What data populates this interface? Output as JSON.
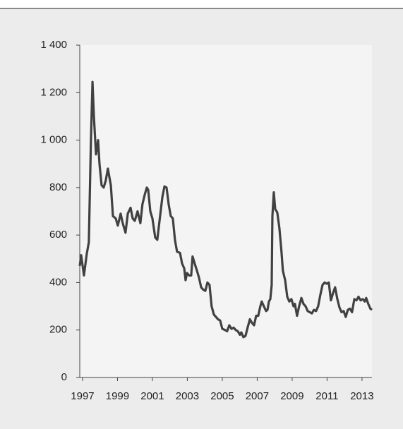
{
  "chart_data": {
    "type": "line",
    "x": [
      1996.84,
      1996.92,
      1997.08,
      1997.24,
      1997.36,
      1997.48,
      1997.57,
      1997.65,
      1997.77,
      1997.89,
      1997.97,
      1998.09,
      1998.21,
      1998.33,
      1998.45,
      1998.62,
      1998.74,
      1998.9,
      1999.02,
      1999.18,
      1999.3,
      1999.46,
      1999.59,
      1999.75,
      1999.87,
      1999.99,
      2000.15,
      2000.31,
      2000.43,
      2000.56,
      2000.68,
      2000.76,
      2000.88,
      2001.0,
      2001.16,
      2001.28,
      2001.44,
      2001.57,
      2001.69,
      2001.81,
      2001.93,
      2002.05,
      2002.17,
      2002.29,
      2002.41,
      2002.58,
      2002.7,
      2002.82,
      2002.9,
      2002.98,
      2003.1,
      2003.22,
      2003.3,
      2003.42,
      2003.55,
      2003.67,
      2003.79,
      2003.91,
      2004.03,
      2004.15,
      2004.27,
      2004.39,
      2004.52,
      2004.64,
      2004.76,
      2004.88,
      2005.0,
      2005.16,
      2005.28,
      2005.4,
      2005.53,
      2005.65,
      2005.77,
      2005.89,
      2006.01,
      2006.09,
      2006.21,
      2006.33,
      2006.45,
      2006.58,
      2006.7,
      2006.82,
      2006.94,
      2007.06,
      2007.18,
      2007.26,
      2007.38,
      2007.51,
      2007.59,
      2007.67,
      2007.75,
      2007.83,
      2007.87,
      2007.95,
      2008.03,
      2008.15,
      2008.27,
      2008.39,
      2008.47,
      2008.6,
      2008.72,
      2008.84,
      2008.96,
      2009.08,
      2009.16,
      2009.28,
      2009.4,
      2009.53,
      2009.65,
      2009.77,
      2009.89,
      2010.01,
      2010.13,
      2010.25,
      2010.37,
      2010.49,
      2010.62,
      2010.74,
      2010.86,
      2010.98,
      2011.1,
      2011.22,
      2011.34,
      2011.46,
      2011.59,
      2011.71,
      2011.83,
      2011.95,
      2012.07,
      2012.19,
      2012.31,
      2012.43,
      2012.56,
      2012.68,
      2012.8,
      2012.92,
      2013.04,
      2013.16,
      2013.24,
      2013.36,
      2013.48,
      2013.57
    ],
    "series": [
      {
        "color": "#414141",
        "values": [
          470,
          515,
          430,
          520,
          570,
          1000,
          1245,
          1100,
          940,
          1000,
          900,
          810,
          800,
          830,
          880,
          810,
          680,
          670,
          640,
          690,
          650,
          610,
          690,
          715,
          670,
          660,
          700,
          650,
          730,
          770,
          800,
          790,
          700,
          670,
          590,
          580,
          680,
          760,
          805,
          800,
          730,
          680,
          670,
          580,
          530,
          525,
          480,
          460,
          410,
          440,
          430,
          430,
          510,
          480,
          450,
          420,
          380,
          370,
          365,
          400,
          390,
          300,
          265,
          255,
          245,
          240,
          205,
          200,
          195,
          220,
          205,
          210,
          200,
          195,
          180,
          190,
          170,
          175,
          210,
          245,
          230,
          220,
          260,
          260,
          300,
          320,
          300,
          280,
          285,
          320,
          330,
          390,
          680,
          780,
          710,
          695,
          630,
          530,
          450,
          410,
          340,
          320,
          330,
          300,
          310,
          260,
          300,
          335,
          310,
          300,
          280,
          275,
          270,
          285,
          280,
          300,
          350,
          390,
          400,
          395,
          400,
          325,
          355,
          380,
          330,
          295,
          275,
          280,
          255,
          285,
          290,
          275,
          330,
          325,
          340,
          325,
          330,
          320,
          335,
          310,
          290,
          285
        ]
      }
    ],
    "xlim": [
      1996.84,
      2013.57
    ],
    "xticks": [
      1997,
      1999,
      2001,
      2003,
      2005,
      2007,
      2009,
      2011,
      2013
    ],
    "ylim": [
      0,
      1400
    ],
    "yticks": [
      0,
      200,
      400,
      600,
      800,
      {
        "value": 1000,
        "label": "1 000"
      },
      {
        "value": 1200,
        "label": "1 200"
      },
      {
        "value": 1400,
        "label": "1 400"
      }
    ]
  }
}
